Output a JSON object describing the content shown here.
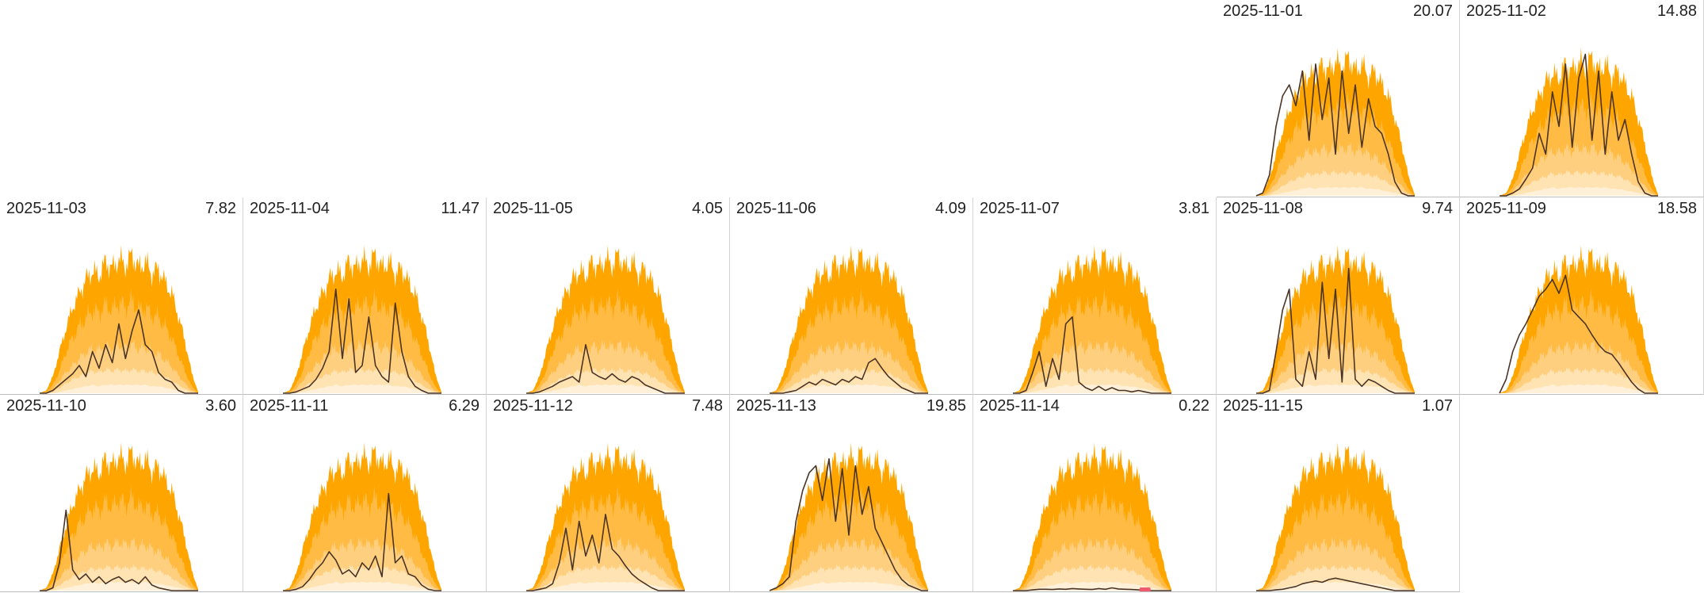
{
  "chart_data": {
    "type": "area",
    "layout": "calendar-small-multiples",
    "columns": 7,
    "leading_empty_cells": 5,
    "colors": {
      "band_max": "#FFA500",
      "band_high": "#FFBB44",
      "band_mid": "#FFCF80",
      "band_low": "#FFE3B3",
      "band_min": "#FFF1D9",
      "actual_line": "#4a3426",
      "near_zero_marker": "#ef5a6e"
    },
    "reference_profile": {
      "x": [
        6.0,
        6.5,
        7.0,
        7.5,
        8.0,
        8.5,
        9.0,
        9.5,
        10.0,
        10.5,
        11.0,
        11.5,
        12.0,
        12.5,
        13.0,
        13.5,
        14.0,
        14.5,
        15.0,
        15.5,
        16.0,
        16.5,
        17.0,
        17.5,
        18.0
      ],
      "max": [
        0,
        0.02,
        0.12,
        0.3,
        0.47,
        0.62,
        0.72,
        0.82,
        0.88,
        0.85,
        0.95,
        0.9,
        0.97,
        0.92,
        1.0,
        0.9,
        0.95,
        0.86,
        0.9,
        0.8,
        0.72,
        0.56,
        0.38,
        0.15,
        0.01
      ],
      "high": [
        0,
        0.01,
        0.06,
        0.16,
        0.3,
        0.4,
        0.48,
        0.54,
        0.6,
        0.58,
        0.64,
        0.6,
        0.66,
        0.62,
        0.67,
        0.6,
        0.62,
        0.56,
        0.55,
        0.48,
        0.4,
        0.28,
        0.16,
        0.05,
        0
      ],
      "mid": [
        0,
        0,
        0.03,
        0.09,
        0.15,
        0.2,
        0.25,
        0.29,
        0.32,
        0.31,
        0.34,
        0.32,
        0.35,
        0.33,
        0.35,
        0.32,
        0.33,
        0.3,
        0.28,
        0.24,
        0.19,
        0.13,
        0.07,
        0.02,
        0
      ],
      "low": [
        0,
        0,
        0.01,
        0.04,
        0.07,
        0.1,
        0.12,
        0.14,
        0.16,
        0.15,
        0.17,
        0.16,
        0.17,
        0.16,
        0.17,
        0.16,
        0.16,
        0.15,
        0.14,
        0.12,
        0.09,
        0.06,
        0.03,
        0.01,
        0
      ],
      "min": [
        0,
        0,
        0,
        0.01,
        0.02,
        0.03,
        0.04,
        0.05,
        0.06,
        0.05,
        0.06,
        0.06,
        0.06,
        0.06,
        0.06,
        0.06,
        0.06,
        0.05,
        0.05,
        0.04,
        0.03,
        0.02,
        0.01,
        0,
        0
      ]
    },
    "days": [
      {
        "date": "2025-11-01",
        "total": "20.07",
        "actual": [
          0,
          0.02,
          0.15,
          0.5,
          0.72,
          0.8,
          0.65,
          0.9,
          0.4,
          0.95,
          0.55,
          0.85,
          0.3,
          0.9,
          0.45,
          0.8,
          0.35,
          0.7,
          0.5,
          0.45,
          0.3,
          0.1,
          0.02,
          0,
          0
        ]
      },
      {
        "date": "2025-11-02",
        "total": "14.88",
        "actual": [
          0,
          0,
          0.02,
          0.05,
          0.12,
          0.2,
          0.45,
          0.3,
          0.75,
          0.5,
          0.95,
          0.35,
          0.85,
          1.02,
          0.4,
          0.9,
          0.3,
          0.75,
          0.4,
          0.55,
          0.3,
          0.1,
          0.02,
          0,
          0
        ]
      },
      {
        "date": "2025-11-03",
        "total": "7.82",
        "actual": [
          0,
          0,
          0.02,
          0.06,
          0.1,
          0.14,
          0.2,
          0.12,
          0.3,
          0.18,
          0.35,
          0.22,
          0.5,
          0.25,
          0.45,
          0.6,
          0.35,
          0.3,
          0.15,
          0.1,
          0.08,
          0.02,
          0,
          0,
          0
        ]
      },
      {
        "date": "2025-11-04",
        "total": "11.47",
        "actual": [
          0,
          0,
          0.01,
          0.03,
          0.05,
          0.1,
          0.18,
          0.3,
          0.75,
          0.25,
          0.68,
          0.15,
          0.2,
          0.55,
          0.2,
          0.12,
          0.08,
          0.65,
          0.3,
          0.12,
          0.05,
          0.02,
          0,
          0,
          0
        ]
      },
      {
        "date": "2025-11-05",
        "total": "4.05",
        "actual": [
          0,
          0,
          0.01,
          0.03,
          0.05,
          0.08,
          0.1,
          0.12,
          0.08,
          0.35,
          0.15,
          0.12,
          0.1,
          0.14,
          0.1,
          0.08,
          0.12,
          0.1,
          0.06,
          0.04,
          0.02,
          0,
          0,
          0,
          0
        ]
      },
      {
        "date": "2025-11-06",
        "total": "4.09",
        "actual": [
          0,
          0,
          0,
          0.01,
          0.02,
          0.05,
          0.08,
          0.06,
          0.1,
          0.08,
          0.06,
          0.1,
          0.08,
          0.12,
          0.1,
          0.22,
          0.25,
          0.18,
          0.12,
          0.08,
          0.04,
          0.02,
          0,
          0,
          0
        ]
      },
      {
        "date": "2025-11-07",
        "total": "3.81",
        "actual": [
          0,
          0,
          0.02,
          0.15,
          0.3,
          0.05,
          0.25,
          0.1,
          0.5,
          0.55,
          0.08,
          0.04,
          0.02,
          0.05,
          0.02,
          0.04,
          0.02,
          0.02,
          0.01,
          0.02,
          0.01,
          0,
          0,
          0,
          0
        ]
      },
      {
        "date": "2025-11-08",
        "total": "9.74",
        "actual": [
          0,
          0,
          0.02,
          0.3,
          0.6,
          0.75,
          0.1,
          0.05,
          0.3,
          0.1,
          0.8,
          0.25,
          0.75,
          0.08,
          0.9,
          0.1,
          0.05,
          0.1,
          0.08,
          0.05,
          0.02,
          0,
          0,
          0,
          0
        ]
      },
      {
        "date": "2025-11-09",
        "total": "18.58",
        "actual": [
          0,
          0.1,
          0.3,
          0.42,
          0.5,
          0.6,
          0.7,
          0.75,
          0.82,
          0.72,
          0.85,
          0.6,
          0.55,
          0.5,
          0.42,
          0.35,
          0.3,
          0.28,
          0.22,
          0.15,
          0.08,
          0.03,
          0,
          0,
          0
        ]
      },
      {
        "date": "2025-11-10",
        "total": "3.60",
        "actual": [
          0,
          0,
          0.02,
          0.2,
          0.58,
          0.15,
          0.08,
          0.12,
          0.06,
          0.1,
          0.05,
          0.08,
          0.1,
          0.06,
          0.08,
          0.05,
          0.1,
          0.04,
          0.02,
          0.01,
          0,
          0,
          0,
          0,
          0
        ]
      },
      {
        "date": "2025-11-11",
        "total": "6.29",
        "actual": [
          0,
          0,
          0.01,
          0.03,
          0.08,
          0.15,
          0.2,
          0.28,
          0.22,
          0.12,
          0.15,
          0.1,
          0.2,
          0.15,
          0.25,
          0.1,
          0.7,
          0.2,
          0.25,
          0.12,
          0.1,
          0.04,
          0.01,
          0,
          0
        ]
      },
      {
        "date": "2025-11-12",
        "total": "7.48",
        "actual": [
          0,
          0,
          0.01,
          0.02,
          0.05,
          0.2,
          0.45,
          0.15,
          0.5,
          0.25,
          0.4,
          0.2,
          0.55,
          0.3,
          0.25,
          0.18,
          0.12,
          0.08,
          0.05,
          0.02,
          0,
          0,
          0,
          0,
          0
        ]
      },
      {
        "date": "2025-11-13",
        "total": "19.85",
        "actual": [
          0,
          0.02,
          0.05,
          0.1,
          0.5,
          0.72,
          0.85,
          0.9,
          0.65,
          0.95,
          0.5,
          0.88,
          0.4,
          0.9,
          0.55,
          0.75,
          0.45,
          0.35,
          0.25,
          0.15,
          0.08,
          0.04,
          0.02,
          0,
          0
        ]
      },
      {
        "date": "2025-11-14",
        "total": "0.22",
        "actual": [
          0,
          0,
          0,
          0.005,
          0.01,
          0.01,
          0.008,
          0.012,
          0.01,
          0.015,
          0.012,
          0.01,
          0.008,
          0.015,
          0.01,
          0.02,
          0.012,
          0.01,
          0.008,
          0.005,
          0.003,
          0,
          0,
          0,
          0
        ],
        "marker_x": 16.0
      },
      {
        "date": "2025-11-15",
        "total": "1.07",
        "actual": [
          0,
          0,
          0,
          0.005,
          0.01,
          0.02,
          0.03,
          0.05,
          0.06,
          0.07,
          0.06,
          0.08,
          0.09,
          0.08,
          0.07,
          0.06,
          0.05,
          0.04,
          0.03,
          0.02,
          0.01,
          0,
          0,
          0,
          0
        ]
      }
    ]
  }
}
